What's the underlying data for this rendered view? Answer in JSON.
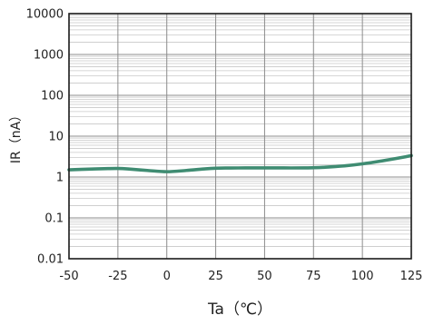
{
  "chart_data": {
    "type": "line",
    "title": "",
    "xlabel": "Ta（℃）",
    "ylabel": "IR（nA）",
    "xlim": [
      -50,
      125
    ],
    "ylim": [
      0.01,
      10000
    ],
    "yscale": "log",
    "grid": true,
    "x_ticks": [
      "-50",
      "-25",
      "0",
      "25",
      "50",
      "75",
      "100",
      "125"
    ],
    "y_ticks": [
      "0.01",
      "0.1",
      "1",
      "10",
      "100",
      "1000",
      "10000"
    ],
    "series": [
      {
        "color": "#3f8c72",
        "x": [
          -50,
          -40,
          -30,
          -25,
          -20,
          -10,
          0,
          10,
          20,
          25,
          30,
          40,
          50,
          60,
          70,
          75,
          80,
          90,
          100,
          110,
          120,
          125
        ],
        "y": [
          1.5,
          1.56,
          1.61,
          1.62,
          1.58,
          1.45,
          1.35,
          1.45,
          1.59,
          1.64,
          1.66,
          1.67,
          1.67,
          1.67,
          1.67,
          1.69,
          1.73,
          1.86,
          2.1,
          2.48,
          3.0,
          3.35
        ]
      }
    ]
  }
}
